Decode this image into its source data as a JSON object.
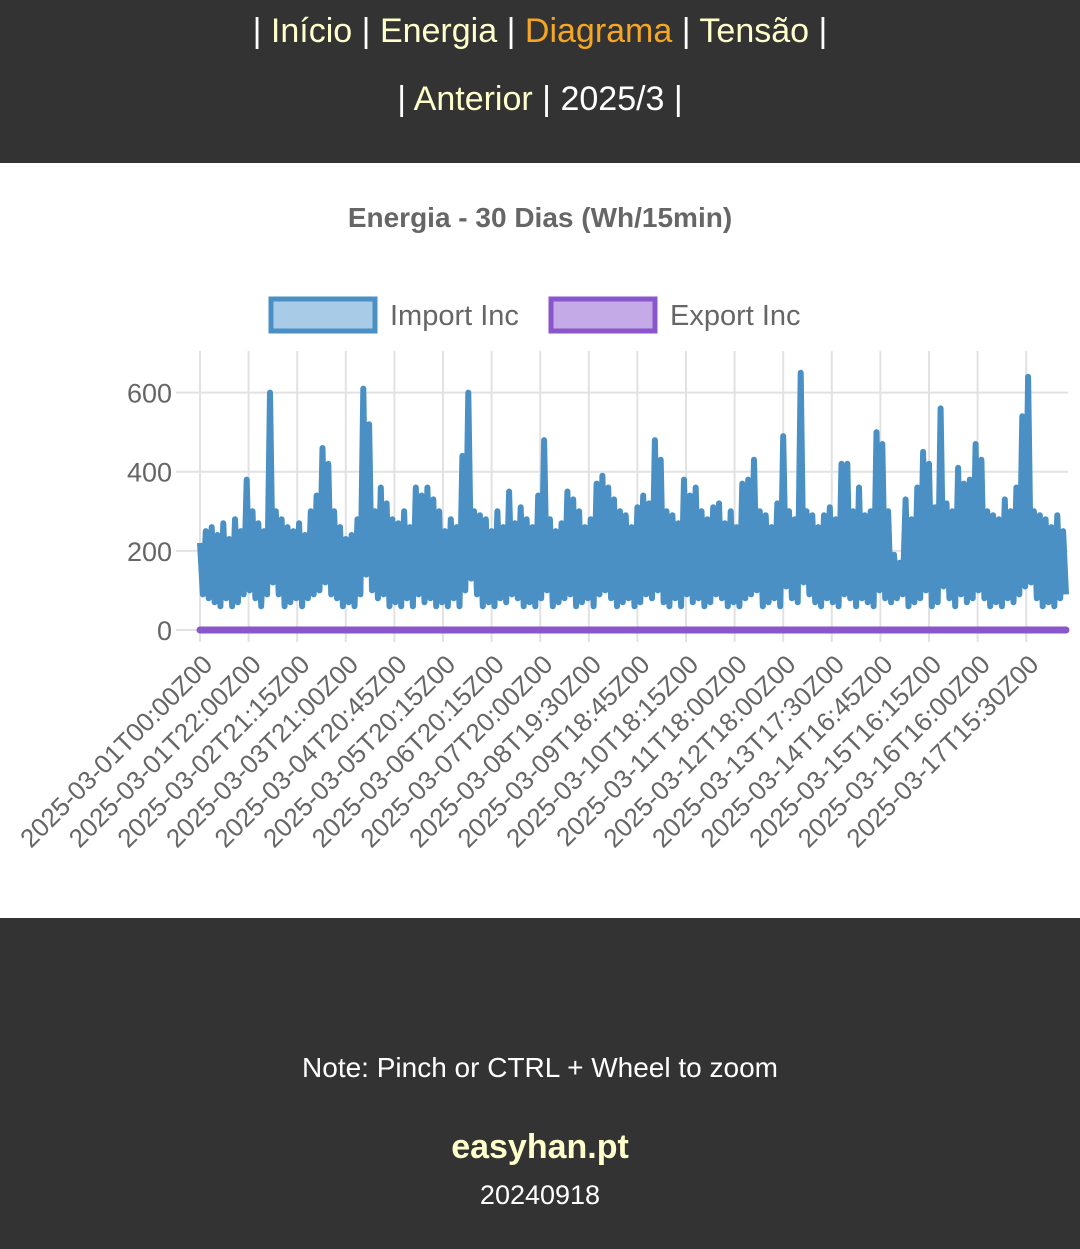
{
  "nav": {
    "home": "Início",
    "energy": "Energia",
    "diagram": "Diagrama",
    "voltage": "Tensão",
    "previous": "Anterior",
    "period": "2025/3",
    "separator": "|",
    "active_color": "#f5a623",
    "link_color": "#ffffcc"
  },
  "chart_data": {
    "type": "line",
    "title": "Energia - 30 Dias (Wh/15min)",
    "xlabel": "",
    "ylabel": "",
    "ylim": [
      0,
      700
    ],
    "yticks": [
      0,
      200,
      400,
      600
    ],
    "grid": true,
    "legend_position": "top-center",
    "x_tick_labels": [
      "2025-03-01T00:00Z00",
      "2025-03-01T22:00Z00",
      "2025-03-02T21:15Z00",
      "2025-03-03T21:00Z00",
      "2025-03-04T20:45Z00",
      "2025-03-05T20:15Z00",
      "2025-03-06T20:15Z00",
      "2025-03-07T20:00Z00",
      "2025-03-08T19:30Z00",
      "2025-03-09T18:45Z00",
      "2025-03-10T18:15Z00",
      "2025-03-11T18:00Z00",
      "2025-03-12T18:00Z00",
      "2025-03-13T17:30Z00",
      "2025-03-14T16:45Z00",
      "2025-03-15T16:15Z00",
      "2025-03-16T16:00Z00",
      "2025-03-17T15:30Z00"
    ],
    "series": [
      {
        "name": "Import Inc",
        "color": "#4a90c4",
        "fill": "#a8cce8",
        "values": [
          220,
          90,
          250,
          80,
          260,
          70,
          240,
          60,
          270,
          80,
          230,
          60,
          280,
          70,
          250,
          90,
          380,
          100,
          300,
          80,
          270,
          60,
          250,
          90,
          600,
          120,
          300,
          90,
          280,
          60,
          260,
          70,
          250,
          80,
          270,
          60,
          240,
          80,
          300,
          90,
          340,
          100,
          460,
          120,
          420,
          90,
          300,
          80,
          260,
          60,
          230,
          70,
          240,
          60,
          280,
          90,
          610,
          140,
          520,
          100,
          300,
          80,
          360,
          90,
          320,
          60,
          280,
          70,
          270,
          60,
          300,
          80,
          260,
          60,
          360,
          90,
          340,
          70,
          360,
          80,
          330,
          60,
          300,
          70,
          250,
          60,
          280,
          80,
          260,
          60,
          440,
          100,
          600,
          130,
          300,
          90,
          290,
          60,
          280,
          70,
          250,
          60,
          300,
          80,
          260,
          70,
          350,
          90,
          270,
          80,
          310,
          60,
          280,
          70,
          260,
          60,
          340,
          80,
          480,
          100,
          280,
          60,
          250,
          70,
          270,
          80,
          350,
          90,
          330,
          60,
          300,
          70,
          260,
          80,
          280,
          60,
          370,
          90,
          390,
          100,
          360,
          80,
          330,
          60,
          300,
          70,
          290,
          80,
          260,
          60,
          310,
          70,
          340,
          90,
          320,
          80,
          480,
          100,
          430,
          70,
          300,
          60,
          290,
          80,
          270,
          60,
          380,
          90,
          340,
          70,
          360,
          80,
          300,
          60,
          280,
          70,
          310,
          90,
          320,
          80,
          270,
          60,
          300,
          70,
          260,
          60,
          370,
          80,
          380,
          90,
          430,
          100,
          300,
          60,
          290,
          70,
          260,
          80,
          320,
          60,
          490,
          110,
          300,
          80,
          280,
          70,
          650,
          120,
          300,
          90,
          290,
          70,
          260,
          60,
          290,
          80,
          310,
          70,
          280,
          60,
          420,
          90,
          420,
          80,
          300,
          60,
          360,
          80,
          290,
          70,
          300,
          60,
          500,
          100,
          470,
          80,
          300,
          70,
          190,
          80,
          170,
          90,
          330,
          60,
          280,
          70,
          360,
          80,
          450,
          100,
          420,
          60,
          310,
          70,
          560,
          110,
          320,
          80,
          300,
          60,
          410,
          90,
          370,
          70,
          380,
          80,
          470,
          100,
          430,
          80,
          300,
          60,
          290,
          70,
          280,
          60,
          330,
          80,
          300,
          70,
          360,
          90,
          540,
          110,
          640,
          120,
          300,
          80,
          290,
          60,
          280,
          70,
          260,
          60,
          290,
          80,
          250,
          90
        ]
      },
      {
        "name": "Export Inc",
        "color": "#8a56cc",
        "fill": "#c4aae6",
        "values": [
          0,
          0
        ]
      }
    ]
  },
  "footer": {
    "note": "Note: Pinch or CTRL + Wheel to zoom",
    "brand": "easyhan.pt",
    "version": "20240918"
  }
}
